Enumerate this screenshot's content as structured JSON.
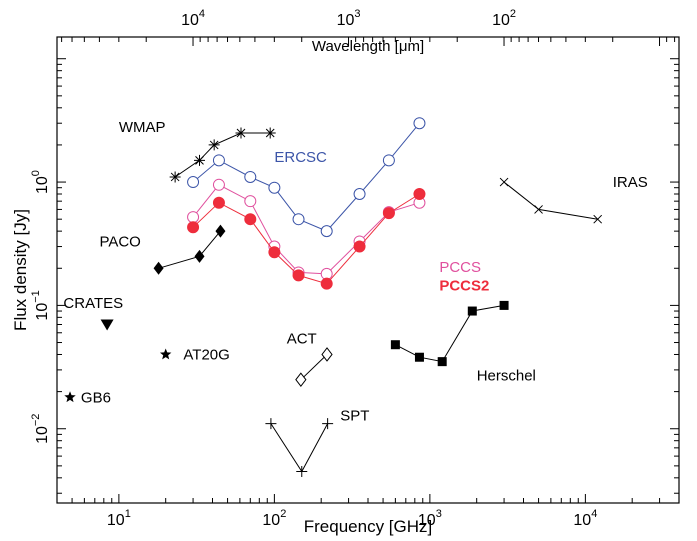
{
  "chart_data": {
    "type": "scatter",
    "xlabel": "Frequency [GHz]",
    "ylabel": "Flux density [Jy]",
    "top_xlabel": "Wavelength [μm]",
    "xscale": "log",
    "yscale": "log",
    "xlim": [
      4,
      40000
    ],
    "ylim": [
      0.0025,
      15
    ],
    "grid": false,
    "x_ticks": [
      {
        "value": 10,
        "label": "10",
        "exp": "1"
      },
      {
        "value": 100,
        "label": "10",
        "exp": "2"
      },
      {
        "value": 1000,
        "label": "10",
        "exp": "3"
      },
      {
        "value": 10000,
        "label": "10",
        "exp": "4"
      }
    ],
    "y_ticks": [
      {
        "value": 0.01,
        "label": "10",
        "exp": "−2"
      },
      {
        "value": 0.1,
        "label": "10",
        "exp": "−1"
      },
      {
        "value": 1,
        "label": "10",
        "exp": "0"
      }
    ],
    "top_ticks": [
      {
        "value": 10000,
        "label": "10",
        "exp": "4"
      },
      {
        "value": 1000,
        "label": "10",
        "exp": "3"
      },
      {
        "value": 100,
        "label": "10",
        "exp": "2"
      }
    ],
    "series": [
      {
        "name": "WMAP",
        "marker": "asterisk",
        "color": "#000000",
        "line": true,
        "x": [
          23,
          33,
          41,
          61,
          94
        ],
        "y": [
          1.1,
          1.5,
          2.0,
          2.5,
          2.5
        ],
        "label_at": [
          10,
          2.8
        ]
      },
      {
        "name": "ERCSC",
        "marker": "open-circle",
        "color": "#3c55a8",
        "line": true,
        "x": [
          30,
          44,
          70,
          100,
          143,
          217,
          353,
          545,
          857
        ],
        "y": [
          1.0,
          1.5,
          1.1,
          0.9,
          0.5,
          0.4,
          0.8,
          1.5,
          3.0
        ],
        "label_at": [
          100,
          1.6
        ]
      },
      {
        "name": "PCCS",
        "marker": "open-circle",
        "color": "#e0509e",
        "line": true,
        "x": [
          30,
          44,
          70,
          100,
          143,
          217,
          353,
          545,
          857
        ],
        "y": [
          0.52,
          0.95,
          0.7,
          0.3,
          0.185,
          0.18,
          0.33,
          0.57,
          0.68
        ],
        "label_at": [
          1150,
          0.205
        ]
      },
      {
        "name": "PCCS2",
        "marker": "filled-circle",
        "color": "#ee2d3c",
        "line": true,
        "bold": true,
        "x": [
          30,
          44,
          70,
          100,
          143,
          217,
          353,
          545,
          857
        ],
        "y": [
          0.43,
          0.68,
          0.5,
          0.27,
          0.175,
          0.15,
          0.3,
          0.56,
          0.8
        ],
        "label_at": [
          1150,
          0.145
        ]
      },
      {
        "name": "IRAS",
        "marker": "x-cross",
        "color": "#000000",
        "line": true,
        "x": [
          3000,
          5000,
          12000
        ],
        "y": [
          1.0,
          0.6,
          0.5
        ],
        "label_at": [
          15000,
          1.0
        ]
      },
      {
        "name": "PACO",
        "marker": "filled-diamond",
        "color": "#000000",
        "line": true,
        "x": [
          18,
          33,
          45
        ],
        "y": [
          0.2,
          0.25,
          0.4
        ],
        "label_at": [
          7.5,
          0.33
        ]
      },
      {
        "name": "CRATES",
        "marker": "filled-triangle-down",
        "color": "#000000",
        "line": false,
        "x": [
          8.4
        ],
        "y": [
          0.07
        ],
        "label_at": [
          4.4,
          0.105
        ]
      },
      {
        "name": "AT20G",
        "marker": "filled-star",
        "color": "#000000",
        "line": false,
        "x": [
          20
        ],
        "y": [
          0.04
        ],
        "label_at": [
          26,
          0.04
        ]
      },
      {
        "name": "GB6",
        "marker": "filled-star",
        "color": "#000000",
        "line": false,
        "x": [
          4.85
        ],
        "y": [
          0.018
        ],
        "label_at": [
          5.7,
          0.018
        ]
      },
      {
        "name": "ACT",
        "marker": "open-diamond",
        "color": "#000000",
        "line": true,
        "x": [
          148,
          218
        ],
        "y": [
          0.025,
          0.04
        ],
        "label_at": [
          120,
          0.054
        ]
      },
      {
        "name": "SPT",
        "marker": "plus",
        "color": "#000000",
        "line": true,
        "x": [
          95,
          150,
          220
        ],
        "y": [
          0.011,
          0.0045,
          0.011
        ],
        "label_at": [
          265,
          0.0128
        ]
      },
      {
        "name": "Herschel",
        "marker": "filled-square",
        "color": "#000000",
        "line": true,
        "x": [
          600,
          857,
          1200,
          1874,
          3000
        ],
        "y": [
          0.048,
          0.038,
          0.035,
          0.09,
          0.1
        ],
        "label_at": [
          2000,
          0.027
        ]
      }
    ]
  }
}
